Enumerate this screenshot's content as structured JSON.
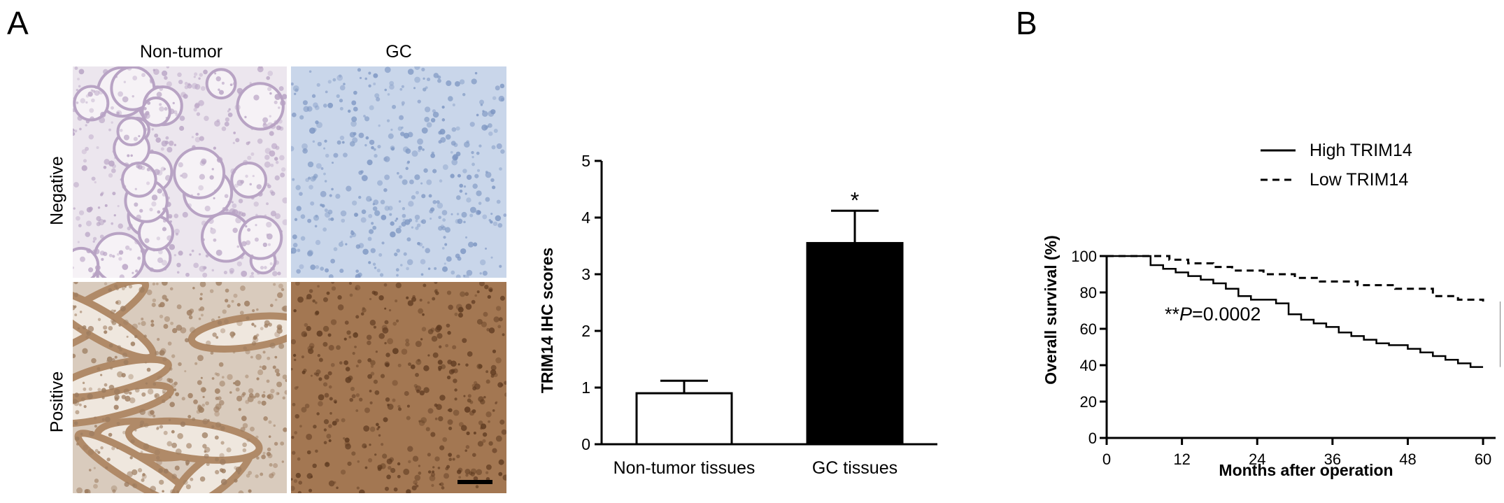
{
  "panels": {
    "a_letter": "A",
    "b_letter": "B"
  },
  "micrographs": {
    "col_labels": [
      "Non-tumor",
      "GC"
    ],
    "row_labels": [
      "Negative",
      "Positive"
    ],
    "tiles": [
      {
        "row": "Negative",
        "col": "Non-tumor",
        "stain": "light-purple",
        "base": "#ece6ee",
        "accent": "#b8a3c4"
      },
      {
        "row": "Negative",
        "col": "GC",
        "stain": "blue",
        "base": "#c9d6ea",
        "accent": "#7d96c2"
      },
      {
        "row": "Positive",
        "col": "Non-tumor",
        "stain": "brown-moderate",
        "base": "#d9cbbd",
        "accent": "#9c7b5e"
      },
      {
        "row": "Positive",
        "col": "GC",
        "stain": "brown-strong",
        "base": "#a37752",
        "accent": "#5e3a20"
      }
    ]
  },
  "chart_data": [
    {
      "type": "bar",
      "categories": [
        "Non-tumor tissues",
        "GC tissues"
      ],
      "values": [
        0.9,
        3.55
      ],
      "error_upper": [
        1.12,
        4.12
      ],
      "bar_colors": [
        "#ffffff",
        "#000000"
      ],
      "annotations": [
        {
          "category": "GC tissues",
          "text": "*"
        }
      ],
      "ylabel": "TRIM14 IHC scores",
      "xlabel": "",
      "ylim": [
        0,
        5
      ],
      "yticks": [
        "0",
        "1",
        "2",
        "3",
        "4",
        "5"
      ]
    },
    {
      "type": "line",
      "xlabel": "Months after operation",
      "ylabel": "Overall survival (%)",
      "xlim": [
        0,
        62
      ],
      "ylim": [
        0,
        100
      ],
      "xticks": [
        "0",
        "12",
        "24",
        "36",
        "48",
        "60"
      ],
      "yticks": [
        "0",
        "20",
        "40",
        "60",
        "80",
        "100"
      ],
      "annotation_p_prefix": "**",
      "annotation_p_italic": "P",
      "annotation_p_value": "=0.0002",
      "significance_mark": "**",
      "series": [
        {
          "name": "High TRIM14",
          "style": "solid",
          "x": [
            0,
            6,
            7,
            9,
            11,
            13,
            15,
            17,
            19,
            21,
            23,
            27,
            29,
            31,
            33,
            35,
            37,
            39,
            41,
            43,
            45,
            48,
            50,
            52,
            54,
            56,
            58,
            60
          ],
          "y": [
            100,
            100,
            95,
            93,
            91,
            89,
            87,
            85,
            82,
            78,
            76,
            74,
            68,
            65,
            63,
            61,
            58,
            56,
            54,
            52,
            51,
            49,
            47,
            45,
            43,
            41,
            39,
            39
          ]
        },
        {
          "name": "Low TRIM14",
          "style": "dashed",
          "x": [
            0,
            8,
            10,
            13,
            17,
            20,
            25,
            30,
            34,
            40,
            46,
            52,
            56,
            60
          ],
          "y": [
            100,
            100,
            98,
            96,
            94,
            92,
            90,
            88,
            86,
            84,
            82,
            78,
            76,
            75
          ]
        }
      ]
    }
  ]
}
